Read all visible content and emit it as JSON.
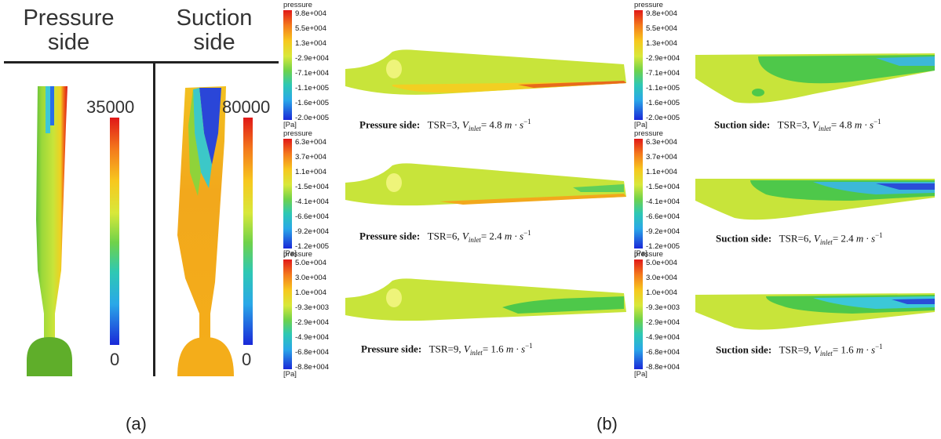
{
  "panel_a": {
    "label": "(a)",
    "left": {
      "header_line1": "Pressure",
      "header_line2": "side",
      "scale_max": "35000",
      "scale_min": "0"
    },
    "right": {
      "header_line1": "Suction",
      "header_line2": "side",
      "scale_max": "80000",
      "scale_min": "0"
    }
  },
  "panel_b": {
    "label": "(b)",
    "legend_title": "pressure",
    "legend_unit": "[Pa]",
    "legends": [
      {
        "ticks": [
          "9.8e+004",
          "5.5e+004",
          "1.3e+004",
          "-2.9e+004",
          "-7.1e+004",
          "-1.1e+005",
          "-1.6e+005",
          "-2.0e+005"
        ]
      },
      {
        "ticks": [
          "6.3e+004",
          "3.7e+004",
          "1.1e+004",
          "-1.5e+004",
          "-4.1e+004",
          "-6.6e+004",
          "-9.2e+004",
          "-1.2e+005"
        ]
      },
      {
        "ticks": [
          "5.0e+004",
          "3.0e+004",
          "1.0e+004",
          "-9.3e+003",
          "-2.9e+004",
          "-4.9e+004",
          "-6.8e+004",
          "-8.8e+004"
        ]
      }
    ],
    "rows": [
      {
        "pressure_label": "Pressure side:",
        "suction_label": "Suction side:",
        "tsr": "TSR=3,",
        "v_symbol": "V",
        "v_sub": "inlet",
        "v_value": "= 4.8",
        "unit": "m · s",
        "exp": "−1"
      },
      {
        "pressure_label": "Pressure side:",
        "suction_label": "Suction side:",
        "tsr": "TSR=6,",
        "v_symbol": "V",
        "v_sub": "inlet",
        "v_value": "= 2.4",
        "unit": "m · s",
        "exp": "−1"
      },
      {
        "pressure_label": "Pressure side:",
        "suction_label": "Suction side:",
        "tsr": "TSR=9,",
        "v_symbol": "V",
        "v_sub": "inlet",
        "v_value": "= 1.6",
        "unit": "m · s",
        "exp": "−1"
      }
    ]
  },
  "colors": {
    "divider": "#222222",
    "blade_green": "#8fd33a",
    "blade_yellow": "#e4e83a",
    "blade_orange": "#f2b21c",
    "blade_red": "#e8261c",
    "blade_blue": "#1f3fd8",
    "blade_cyan": "#33c8d8",
    "hub_green": "#5fae2a",
    "hub_orange": "#f4ad1a"
  }
}
